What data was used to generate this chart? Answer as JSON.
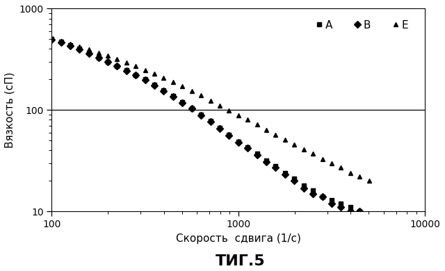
{
  "xlabel": "Скорость  сдвига (1/с)",
  "ylabel": "Вязкость (сП)",
  "fig_label": "ΤИГ.5",
  "xlim": [
    100,
    10000
  ],
  "ylim": [
    10,
    1000
  ],
  "hline_y": 100,
  "series_A": {
    "x": [
      100,
      112,
      126,
      141,
      158,
      178,
      200,
      224,
      251,
      282,
      316,
      355,
      398,
      447,
      501,
      562,
      631,
      708,
      794,
      891,
      1000,
      1122,
      1259,
      1413,
      1585,
      1778,
      1995,
      2239,
      2512,
      2818,
      3162,
      3548,
      3981,
      4467,
      5012
    ],
    "y": [
      500,
      470,
      435,
      400,
      365,
      330,
      300,
      272,
      247,
      223,
      200,
      178,
      157,
      138,
      120,
      104,
      90,
      78,
      67,
      57,
      49,
      43,
      37,
      32,
      28,
      24,
      21,
      18,
      16,
      14,
      13,
      12,
      11,
      10,
      9
    ]
  },
  "series_B": {
    "x": [
      100,
      112,
      126,
      141,
      158,
      178,
      200,
      224,
      251,
      282,
      316,
      355,
      398,
      447,
      501,
      562,
      631,
      708,
      794,
      891,
      1000,
      1122,
      1259,
      1413,
      1585,
      1778,
      1995,
      2239,
      2512,
      2818,
      3162,
      3548,
      3981,
      4467,
      5012
    ],
    "y": [
      495,
      465,
      430,
      397,
      362,
      327,
      297,
      270,
      244,
      221,
      198,
      176,
      155,
      136,
      118,
      103,
      89,
      77,
      66,
      56,
      48,
      42,
      36,
      31,
      27,
      23,
      20,
      17,
      15,
      14,
      12,
      11,
      10,
      10,
      9
    ]
  },
  "series_E": {
    "x": [
      100,
      112,
      126,
      141,
      158,
      178,
      200,
      224,
      251,
      282,
      316,
      355,
      398,
      447,
      501,
      562,
      631,
      708,
      794,
      891,
      1000,
      1122,
      1259,
      1413,
      1585,
      1778,
      1995,
      2239,
      2512,
      2818,
      3162,
      3548,
      3981,
      4467,
      5012
    ],
    "y": [
      500,
      475,
      450,
      422,
      395,
      368,
      342,
      317,
      293,
      271,
      249,
      228,
      208,
      189,
      171,
      154,
      139,
      124,
      111,
      99,
      89,
      80,
      72,
      64,
      57,
      51,
      46,
      41,
      37,
      33,
      30,
      27,
      24,
      22,
      20
    ]
  },
  "color": "#000000",
  "background": "#ffffff",
  "marker_A": "s",
  "marker_B": "D",
  "marker_E": "^",
  "markersize": 5,
  "xlabel_fontsize": 11,
  "ylabel_fontsize": 11,
  "fig_label_fontsize": 16,
  "tick_fontsize": 10,
  "legend_fontsize": 11
}
